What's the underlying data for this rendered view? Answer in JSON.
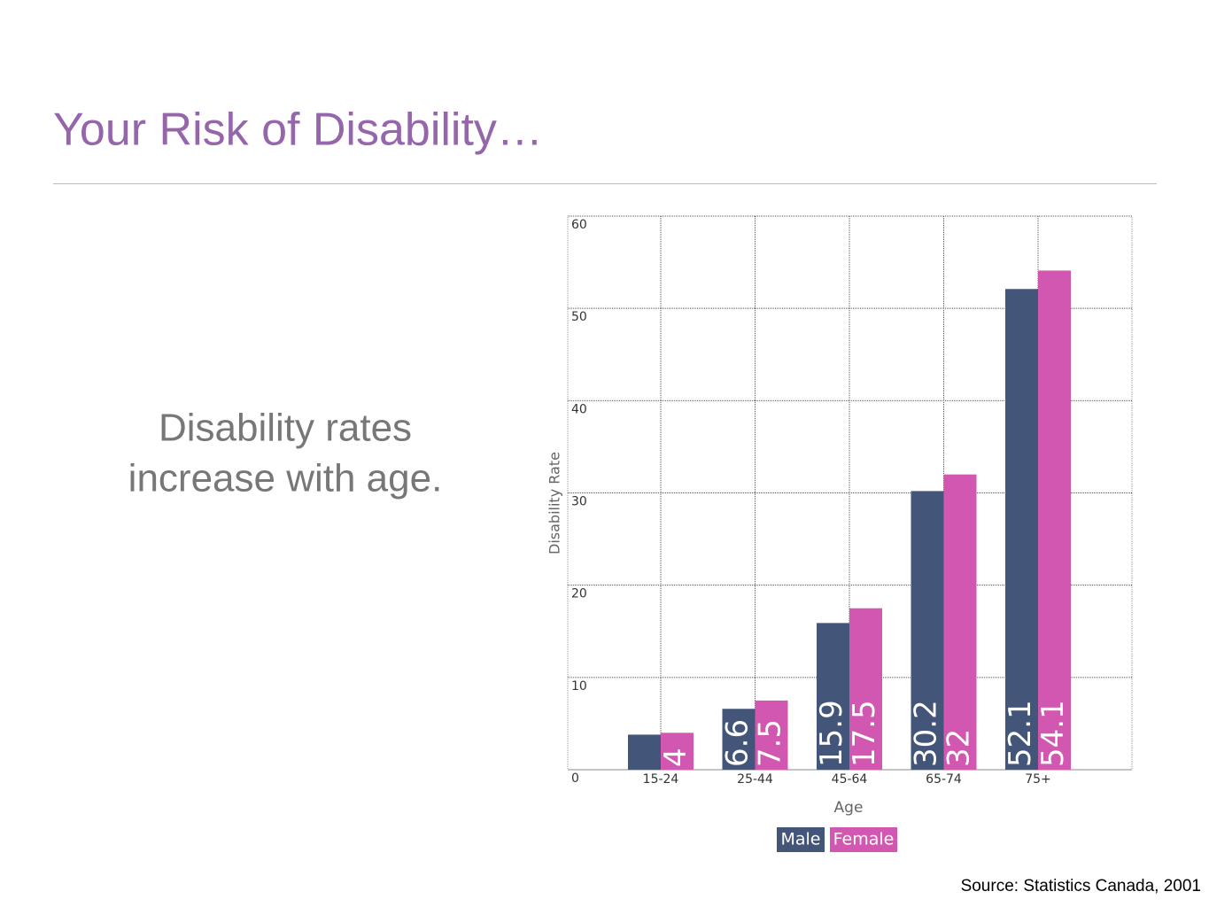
{
  "title": "Your Risk of Disability…",
  "body_text": [
    "Disability rates",
    "increase with age."
  ],
  "source": "Source: Statistics Canada, 2001",
  "chart_data": {
    "type": "bar",
    "categories": [
      "15-24",
      "25-44",
      "45-64",
      "65-74",
      "75+"
    ],
    "series": [
      {
        "name": "Male",
        "color": "#44557a",
        "values": [
          3.8,
          6.6,
          15.9,
          30.2,
          52.1
        ],
        "value_labels": [
          null,
          "6.6",
          "15.9",
          "30.2",
          "52.1"
        ]
      },
      {
        "name": "Female",
        "color": "#d157b1",
        "values": [
          4,
          7.5,
          17.5,
          32,
          54.1
        ]
      }
    ],
    "x_label": "Age",
    "y_label": "Disability Rate",
    "ylim": [
      0,
      60
    ],
    "yticks": [
      0,
      10,
      20,
      30,
      40,
      50,
      60
    ],
    "grid": true
  }
}
